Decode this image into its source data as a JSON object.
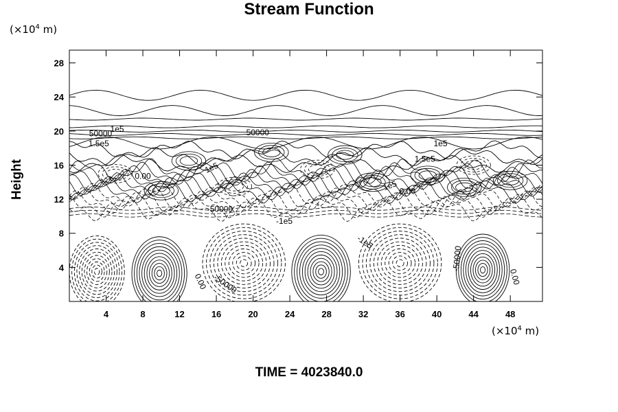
{
  "chart_data": {
    "type": "contour",
    "title": "Stream Function",
    "ylabel": "Height",
    "x_unit": {
      "prefix": "(×10",
      "exp": "4",
      "suffix": " m)"
    },
    "y_unit": {
      "prefix": "(×10",
      "exp": "4",
      "suffix": " m)"
    },
    "xlim": [
      0,
      51.5
    ],
    "ylim": [
      0,
      29.5
    ],
    "x_ticks": [
      4,
      8,
      12,
      16,
      20,
      24,
      28,
      32,
      36,
      40,
      44,
      48
    ],
    "y_ticks": [
      4,
      8,
      12,
      16,
      20,
      24,
      28
    ],
    "contour_labels": [
      {
        "text": "50000",
        "x": 3.4,
        "y": 19.4,
        "rot": 0
      },
      {
        "text": "1e5",
        "x": 5.2,
        "y": 19.9,
        "rot": 0
      },
      {
        "text": "1.5e5",
        "x": 3.2,
        "y": 18.2,
        "rot": 0
      },
      {
        "text": "50000",
        "x": 20.5,
        "y": 19.5,
        "rot": 0
      },
      {
        "text": "1e5",
        "x": 40.4,
        "y": 18.2,
        "rot": 0
      },
      {
        "text": "1.5e5",
        "x": 38.7,
        "y": 16.4,
        "rot": 0
      },
      {
        "text": "1e5",
        "x": 15.6,
        "y": 15.4,
        "rot": -25
      },
      {
        "text": "0.00",
        "x": 8.0,
        "y": 14.4,
        "rot": 0
      },
      {
        "text": "1e5",
        "x": 35.0,
        "y": 13.3,
        "rot": -20
      },
      {
        "text": "0.00",
        "x": 36.8,
        "y": 12.6,
        "rot": 0
      },
      {
        "text": "-50000",
        "x": 16.4,
        "y": 10.5,
        "rot": 0
      },
      {
        "text": "-1e5",
        "x": 23.4,
        "y": 9.1,
        "rot": 0
      },
      {
        "text": "-1e5",
        "x": 32.0,
        "y": 6.7,
        "rot": 35
      },
      {
        "text": "-50000",
        "x": 42.5,
        "y": 5.0,
        "rot": -85
      },
      {
        "text": "0.00",
        "x": 14.0,
        "y": 2.2,
        "rot": 65
      },
      {
        "text": "-50000",
        "x": 16.8,
        "y": 1.8,
        "rot": 35
      },
      {
        "text": "0.00",
        "x": 48.2,
        "y": 2.8,
        "rot": 75
      }
    ],
    "closed_cells": [
      {
        "cx": 9.8,
        "cy": 3.3,
        "rx": 3.0,
        "ry": 4.3,
        "sign": "positive"
      },
      {
        "cx": 27.4,
        "cy": 3.5,
        "rx": 3.2,
        "ry": 4.3,
        "sign": "positive"
      },
      {
        "cx": 45.0,
        "cy": 3.7,
        "rx": 2.9,
        "ry": 4.2,
        "sign": "positive"
      },
      {
        "cx": 3.0,
        "cy": 3.5,
        "rx": 3.0,
        "ry": 4.2,
        "sign": "negative"
      },
      {
        "cx": 19.0,
        "cy": 4.5,
        "rx": 4.5,
        "ry": 4.6,
        "sign": "negative"
      },
      {
        "cx": 36.0,
        "cy": 4.5,
        "rx": 4.5,
        "ry": 4.6,
        "sign": "negative"
      }
    ]
  },
  "footer": {
    "time_label": "TIME = 4023840.0"
  }
}
